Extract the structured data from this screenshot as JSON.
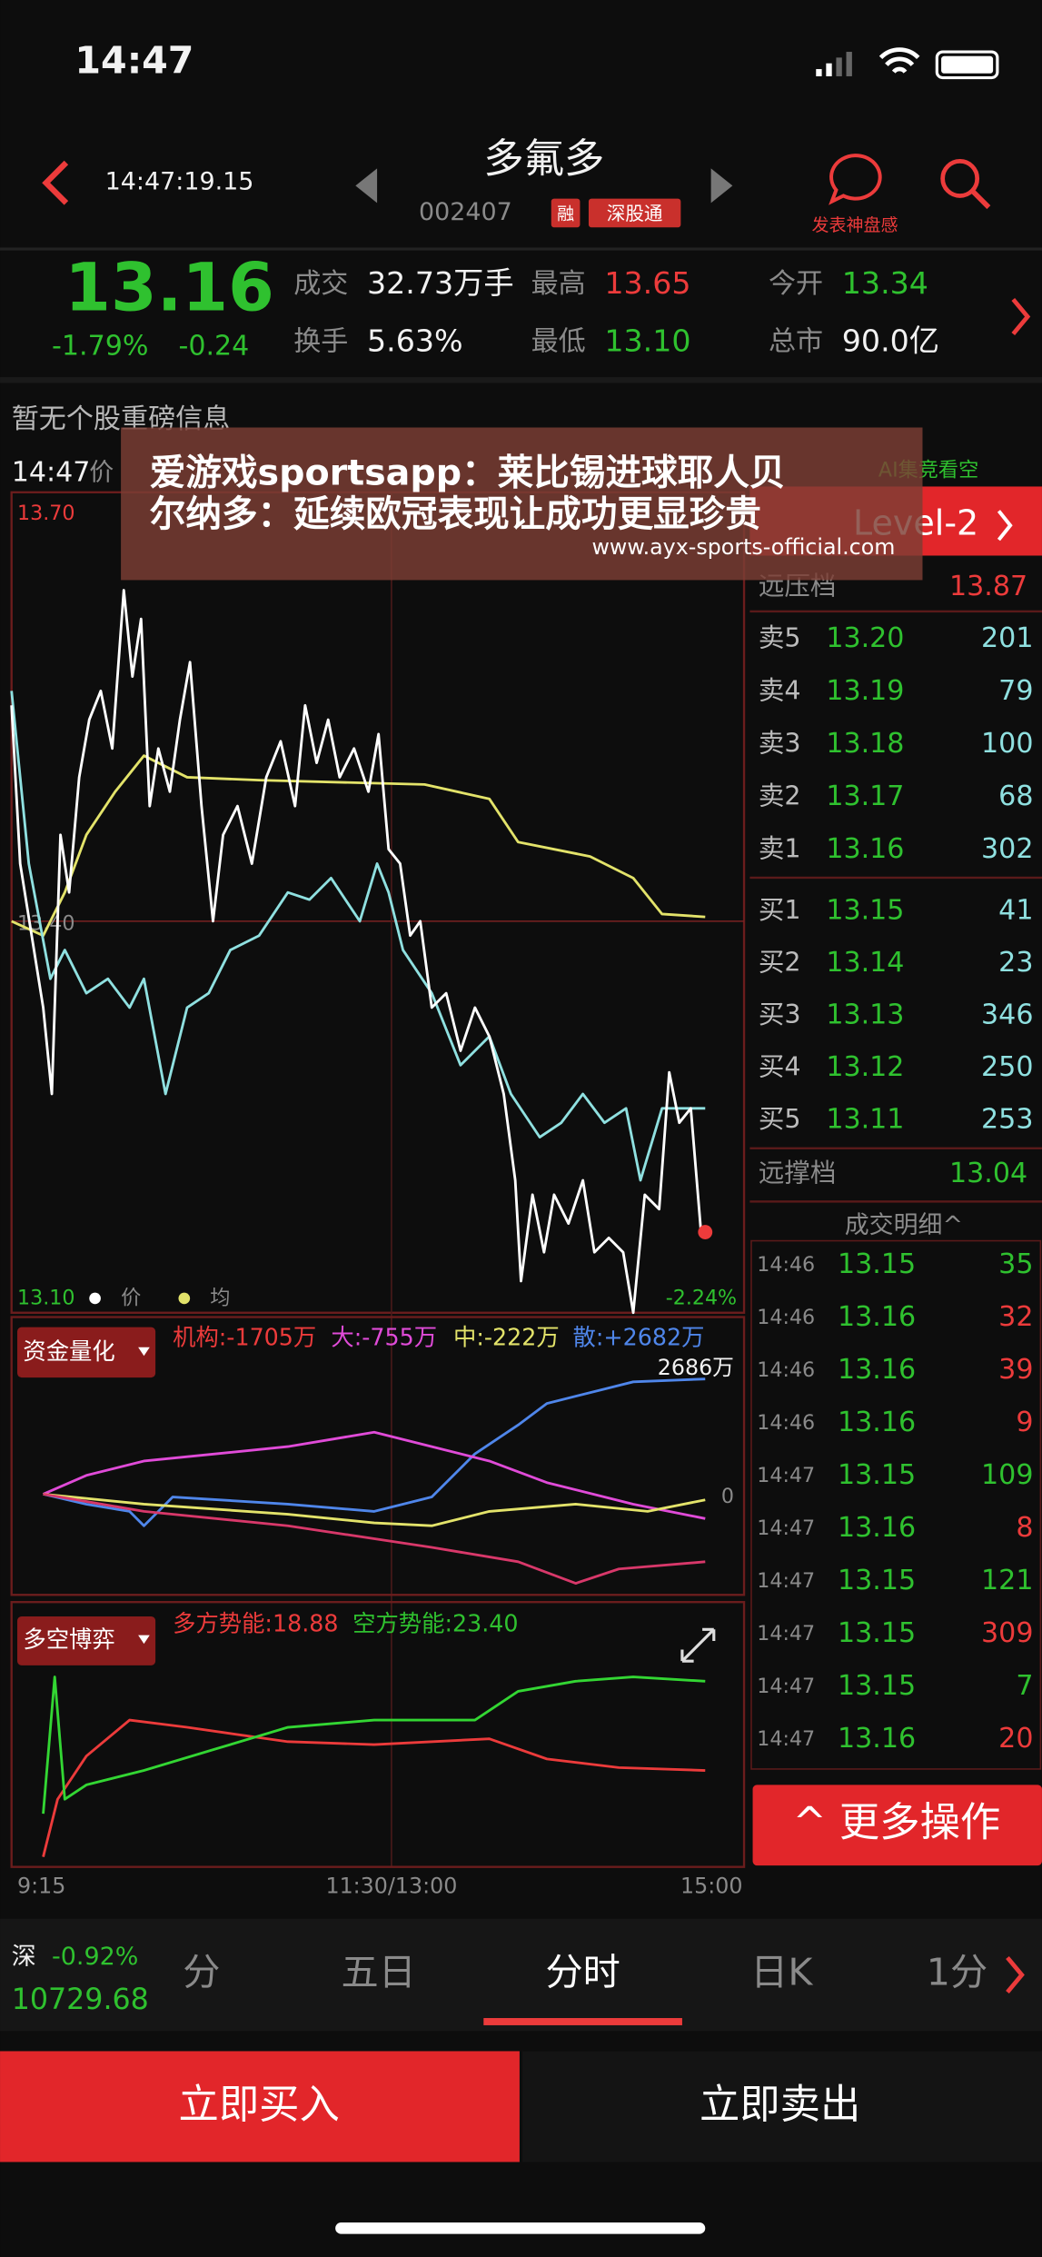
{
  "status": {
    "time": "14:47"
  },
  "header": {
    "time": "14:47:19.15",
    "name": "多氟多",
    "code": "002407",
    "badges": [
      "融",
      "深股通"
    ],
    "action": "发表神盘感"
  },
  "quote": {
    "price": "13.16",
    "change_pct": "-1.79%",
    "change": "-0.24",
    "fields": [
      {
        "label": "成交",
        "value": "32.73万手"
      },
      {
        "label": "最高",
        "value": "13.65"
      },
      {
        "label": "今开",
        "value": "13.34"
      },
      {
        "label": "换手",
        "value": "5.63%"
      },
      {
        "label": "最低",
        "value": "13.10"
      },
      {
        "label": "总市",
        "value": "90.0亿"
      }
    ]
  },
  "notice": "暂无个股重磅信息",
  "overlay": {
    "lines": [
      "爱游戏sportsapp：莱比锡进球耶人贝",
      "尔纳多：延续欧冠表现让成功更显珍贵"
    ],
    "url": "www.ayx-sports-official.com"
  },
  "chart": {
    "time": "14:47",
    "price_tag": "价",
    "signal": "AI集竞看空",
    "level": "Level-2",
    "top": "13.70",
    "mid": "13.40",
    "bottom": "13.10",
    "bottom_pct": "-2.24%",
    "legend": [
      "价",
      "均"
    ]
  },
  "orderbook": {
    "far_ask": {
      "label": "远压档",
      "price": "13.87"
    },
    "asks": [
      {
        "label": "卖5",
        "price": "13.20",
        "volume": "201"
      },
      {
        "label": "卖4",
        "price": "13.19",
        "volume": "79"
      },
      {
        "label": "卖3",
        "price": "13.18",
        "volume": "100"
      },
      {
        "label": "卖2",
        "price": "13.17",
        "volume": "68"
      },
      {
        "label": "卖1",
        "price": "13.16",
        "volume": "302"
      }
    ],
    "bids": [
      {
        "label": "买1",
        "price": "13.15",
        "volume": "41"
      },
      {
        "label": "买2",
        "price": "13.14",
        "volume": "23"
      },
      {
        "label": "买3",
        "price": "13.13",
        "volume": "346"
      },
      {
        "label": "买4",
        "price": "13.12",
        "volume": "250"
      },
      {
        "label": "买5",
        "price": "13.11",
        "volume": "253"
      }
    ],
    "far_bid": {
      "label": "远撑档",
      "price": "13.04"
    },
    "trades_title": "成交明细^",
    "trades": [
      {
        "time": "14:46",
        "price": "13.15",
        "volume": "35",
        "color": "#2fc12f"
      },
      {
        "time": "14:46",
        "price": "13.16",
        "volume": "32",
        "color": "#ec3b3b"
      },
      {
        "time": "14:46",
        "price": "13.16",
        "volume": "39",
        "color": "#ec3b3b"
      },
      {
        "time": "14:46",
        "price": "13.16",
        "volume": "9",
        "color": "#ec3b3b"
      },
      {
        "time": "14:47",
        "price": "13.15",
        "volume": "109",
        "color": "#2fc12f"
      },
      {
        "time": "14:47",
        "price": "13.16",
        "volume": "8",
        "color": "#ec3b3b"
      },
      {
        "time": "14:47",
        "price": "13.15",
        "volume": "121",
        "color": "#2fc12f"
      },
      {
        "time": "14:47",
        "price": "13.15",
        "volume": "309",
        "color": "#ec3b3b"
      },
      {
        "time": "14:47",
        "price": "13.15",
        "volume": "7",
        "color": "#2fc12f"
      },
      {
        "time": "14:47",
        "price": "13.16",
        "volume": "20",
        "color": "#ec3b3b"
      }
    ]
  },
  "fund": {
    "button": "资金量化",
    "labels": [
      "机构:-1705万",
      "大:-755万",
      "中:-222万",
      "散:+2682万"
    ],
    "max": "2686万",
    "zero": "0"
  },
  "game": {
    "button": "多空博弈",
    "labels": [
      "多方势能:18.88",
      "空方势能:23.40"
    ]
  },
  "xaxis": [
    "9:15",
    "11:30/13:00",
    "15:00"
  ],
  "more": "^ 更多操作",
  "index": {
    "name": "深",
    "change": "-0.92%",
    "value": "10729.68"
  },
  "tabs": [
    "分",
    "五日",
    "分时",
    "日K",
    "1分"
  ],
  "buttons": [
    "立即买入",
    "立即卖出"
  ]
}
